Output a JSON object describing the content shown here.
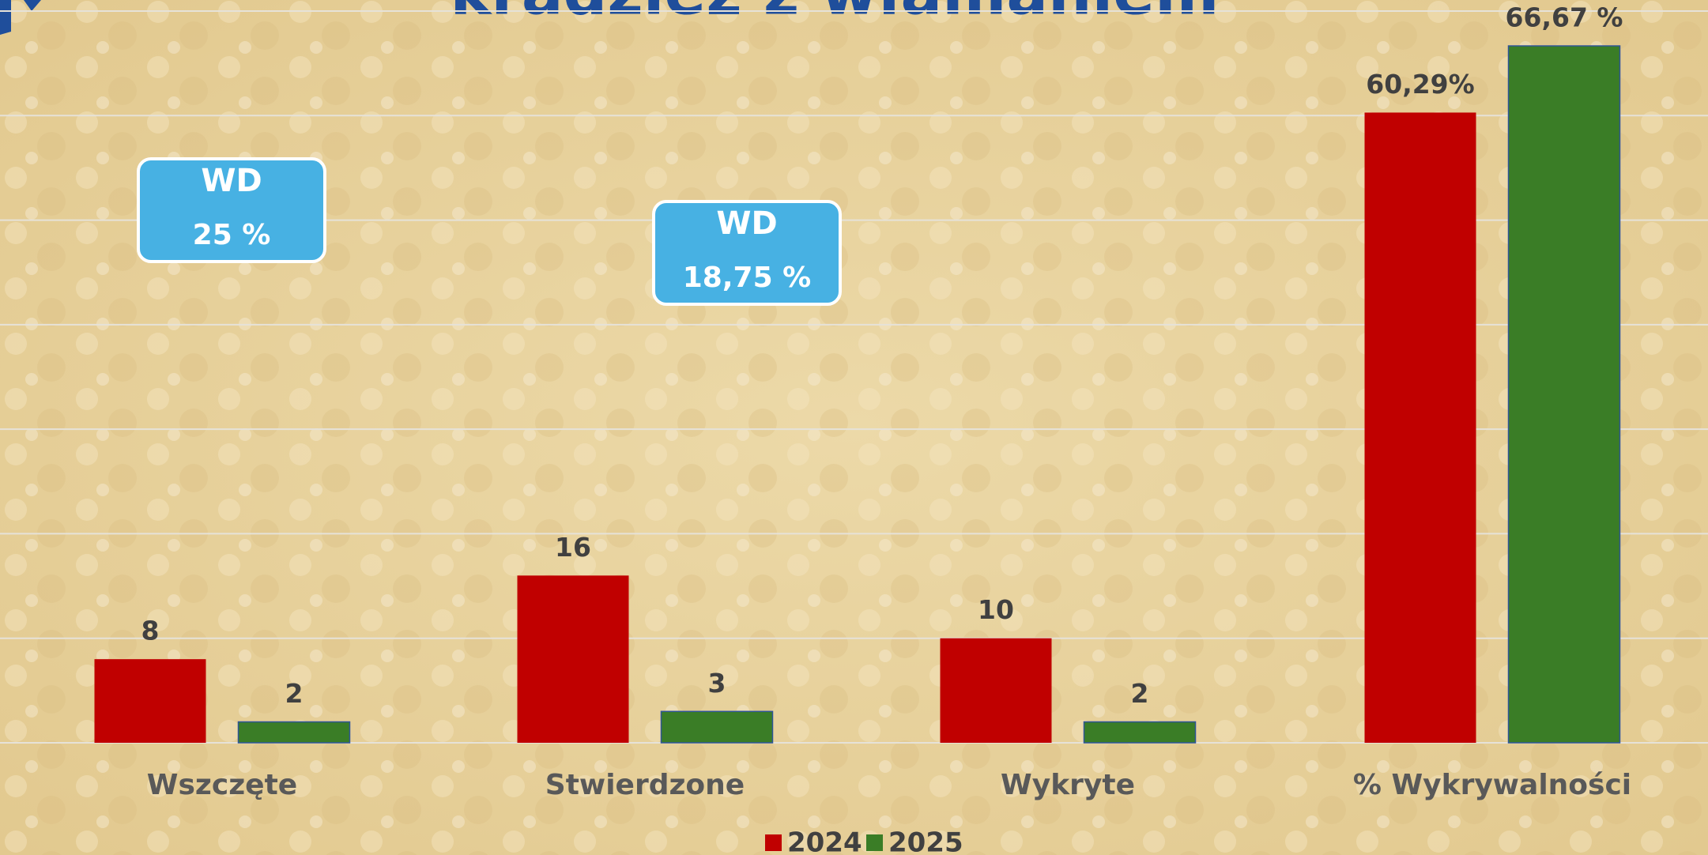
{
  "chart_data": {
    "type": "bar",
    "title": "kradzież z włamaniem",
    "categories": [
      "Wszczęte",
      "Stwierdzone",
      "Wykryte",
      "% Wykrywalności"
    ],
    "series": [
      {
        "name": "2024",
        "color": "#c00000",
        "values": [
          8,
          16,
          10,
          60.29
        ],
        "value_labels": [
          "8",
          "16",
          "10",
          "60,29%"
        ]
      },
      {
        "name": "2025",
        "color": "#3a7d26",
        "values": [
          2,
          3,
          2,
          66.67
        ],
        "value_labels": [
          "2",
          "3",
          "2",
          "66,67 %"
        ]
      }
    ],
    "ylim": [
      0,
      70
    ],
    "yticks": [
      0,
      10,
      20,
      30,
      40,
      50,
      60,
      70
    ],
    "grid": true,
    "legend": "bottom",
    "annotations": [
      {
        "title": "WD",
        "text": "25 %"
      },
      {
        "title": "WD",
        "text": "18,75 %"
      }
    ]
  }
}
